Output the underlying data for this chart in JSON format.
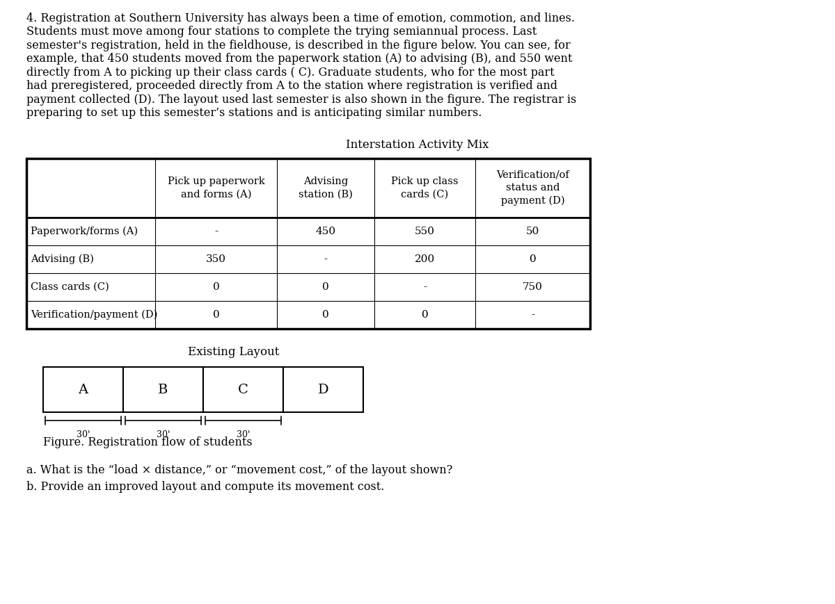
{
  "paragraph_lines": [
    "4. Registration at Southern University has always been a time of emotion, commotion, and lines.",
    "Students must move among four stations to complete the trying semiannual process. Last",
    "semester's registration, held in the fieldhouse, is described in the figure below. You can see, for",
    "example, that 450 students moved from the paperwork station (A) to advising (B), and 550 went",
    "directly from A to picking up their class cards ( C). Graduate students, who for the most part",
    "had preregistered, proceeded directly from A to the station where registration is verified and",
    "payment collected (D). The layout used last semester is also shown in the figure. The registrar is",
    "preparing to set up this semester’s stations and is anticipating similar numbers."
  ],
  "table_title": "Interstation Activity Mix",
  "col_headers": [
    "Pick up paperwork\nand forms (A)",
    "Advising\nstation (B)",
    "Pick up class\ncards (C)",
    "Verification/of\nstatus and\npayment (D)"
  ],
  "row_headers": [
    "Paperwork/forms (A)",
    "Advising (B)",
    "Class cards (C)",
    "Verification/payment (D)"
  ],
  "table_data": [
    [
      "-",
      "450",
      "550",
      "50"
    ],
    [
      "350",
      "-",
      "200",
      "0"
    ],
    [
      "0",
      "0",
      "-",
      "750"
    ],
    [
      "0",
      "0",
      "0",
      "-"
    ]
  ],
  "layout_title": "Existing Layout",
  "stations": [
    "A",
    "B",
    "C",
    "D"
  ],
  "distance_labels": [
    "30'",
    "30'",
    "30'"
  ],
  "figure_caption": "Figure. Registration flow of students",
  "question_a": "a. What is the “load × distance,” or “movement cost,” of the layout shown?",
  "question_b": "b. Provide an improved layout and compute its movement cost.",
  "bg_color": "#ffffff",
  "text_color": "#000000",
  "font_size_para": 11.5,
  "font_size_table": 11,
  "font_size_title": 12,
  "font_size_station": 14,
  "font_size_arrow_label": 9
}
